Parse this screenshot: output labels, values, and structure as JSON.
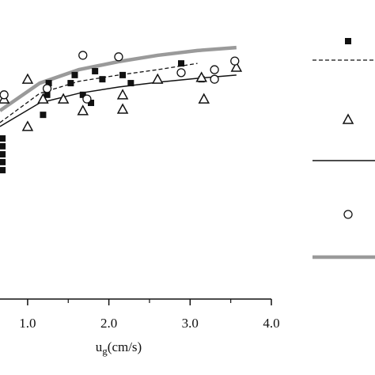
{
  "chart_data": {
    "type": "scatter",
    "xlabel_main": "u",
    "xlabel_sub": "g",
    "xlabel_rest": "(cm/s)",
    "xlim": [
      0.66,
      4.0
    ],
    "xticks": [
      {
        "value": 1.0,
        "label": "1.0"
      },
      {
        "value": 2.0,
        "label": "2.0"
      },
      {
        "value": 3.0,
        "label": "3.0"
      },
      {
        "value": 4.0,
        "label": "4.0"
      }
    ],
    "xminorticks": [
      1.5,
      2.5,
      3.5
    ],
    "ylim": [
      0,
      100
    ],
    "series": [
      {
        "marker": "square",
        "color": "#111111",
        "x": [
          0.69,
          0.69,
          0.69,
          0.69,
          0.69,
          1.19,
          1.24,
          1.26,
          1.53,
          1.58,
          1.68,
          1.78,
          1.83,
          1.92,
          2.17,
          2.27,
          2.89,
          3.14
        ],
        "values": [
          43.1,
          45.8,
          48.4,
          51.1,
          53.7,
          61.6,
          68.3,
          72.2,
          72.2,
          74.9,
          68.3,
          65.6,
          76.2,
          73.5,
          74.9,
          72.2,
          78.8,
          73.5
        ]
      },
      {
        "marker": "triangle",
        "color": "#111111",
        "x": [
          0.71,
          1.0,
          1.0,
          1.19,
          1.44,
          1.68,
          2.17,
          2.17,
          2.6,
          3.14,
          3.17,
          3.57
        ],
        "values": [
          66.9,
          73.5,
          57.7,
          66.9,
          66.9,
          63.0,
          68.3,
          63.5,
          73.5,
          74.1,
          66.9,
          77.5
        ]
      },
      {
        "marker": "circle",
        "color": "#111111",
        "x": [
          0.71,
          1.24,
          1.68,
          1.73,
          2.12,
          2.89,
          3.3,
          3.3,
          3.55
        ],
        "values": [
          68.3,
          70.4,
          81.5,
          66.9,
          81.0,
          75.7,
          76.7,
          73.5,
          79.6
        ]
      }
    ],
    "lines": [
      {
        "style": "dashed",
        "color": "#111111",
        "x": [
          0.66,
          1.15,
          1.63,
          2.12,
          2.6,
          3.09
        ],
        "values": [
          59.0,
          68.8,
          72.8,
          74.9,
          76.7,
          78.8
        ]
      },
      {
        "style": "solid",
        "color": "#111111",
        "x": [
          0.66,
          1.15,
          1.63,
          2.12,
          2.6,
          3.09,
          3.57
        ],
        "values": [
          57.7,
          65.6,
          68.8,
          70.9,
          72.5,
          73.8,
          74.9
        ]
      },
      {
        "style": "thick",
        "color": "#9a9a9a",
        "x": [
          0.66,
          1.15,
          1.63,
          2.12,
          2.6,
          3.09,
          3.57
        ],
        "values": [
          63.0,
          72.2,
          76.7,
          79.4,
          81.5,
          83.1,
          84.1
        ]
      }
    ]
  }
}
